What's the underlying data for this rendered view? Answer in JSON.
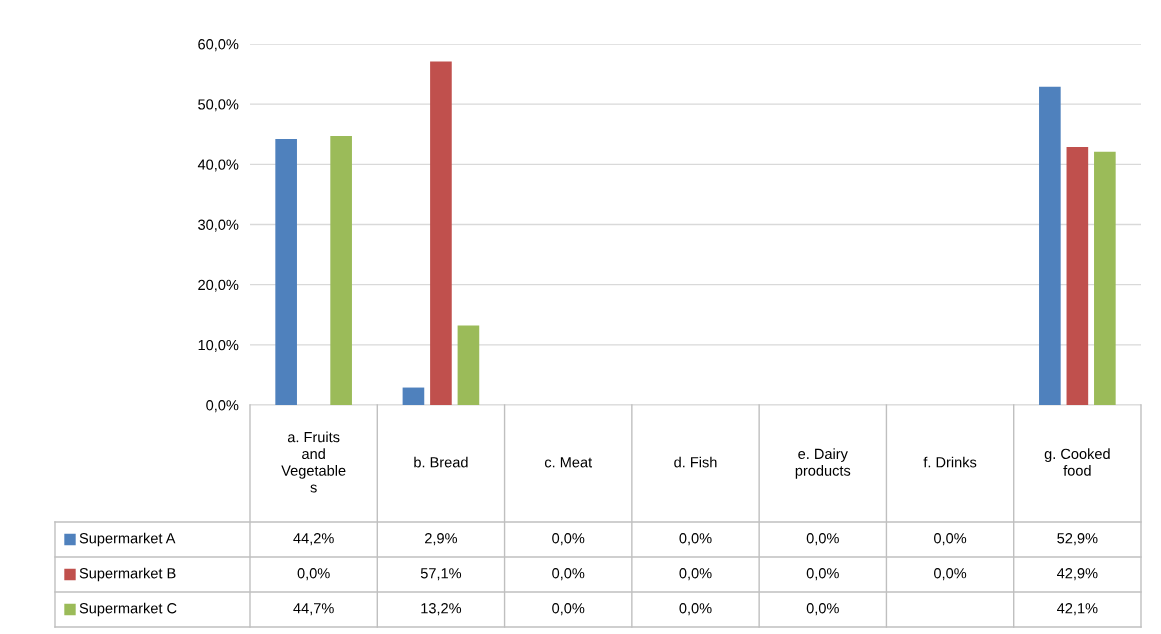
{
  "chart_data": {
    "type": "bar",
    "categories": [
      "a. Fruits\nand\nVegetable\ns",
      "b. Bread",
      "c. Meat",
      "d. Fish",
      "e. Dairy\nproducts",
      "f. Drinks",
      "g. Cooked\nfood"
    ],
    "series": [
      {
        "name": "Supermarket A",
        "color": "#4f81bd",
        "values": [
          44.2,
          2.9,
          0.0,
          0.0,
          0.0,
          0.0,
          52.9
        ],
        "value_labels": [
          "44,2%",
          "2,9%",
          "0,0%",
          "0,0%",
          "0,0%",
          "0,0%",
          "52,9%"
        ]
      },
      {
        "name": "Supermarket B",
        "color": "#c0504d",
        "values": [
          0.0,
          57.1,
          0.0,
          0.0,
          0.0,
          0.0,
          42.9
        ],
        "value_labels": [
          "0,0%",
          "57,1%",
          "0,0%",
          "0,0%",
          "0,0%",
          "0,0%",
          "42,9%"
        ]
      },
      {
        "name": "Supermarket C",
        "color": "#9bbb59",
        "values": [
          44.7,
          13.2,
          0.0,
          0.0,
          0.0,
          null,
          42.1
        ],
        "value_labels": [
          "44,7%",
          "13,2%",
          "0,0%",
          "0,0%",
          "0,0%",
          null,
          "42,1%"
        ]
      }
    ],
    "ylim": [
      0,
      60
    ],
    "yticks": [
      {
        "value": 0,
        "label": "0,0%"
      },
      {
        "value": 10,
        "label": "10,0%"
      },
      {
        "value": 20,
        "label": "20,0%"
      },
      {
        "value": 30,
        "label": "30,0%"
      },
      {
        "value": 40,
        "label": "40,0%"
      },
      {
        "value": 50,
        "label": "50,0%"
      },
      {
        "value": 60,
        "label": "60,0%"
      }
    ],
    "grid": "y",
    "legend": "bottom"
  }
}
